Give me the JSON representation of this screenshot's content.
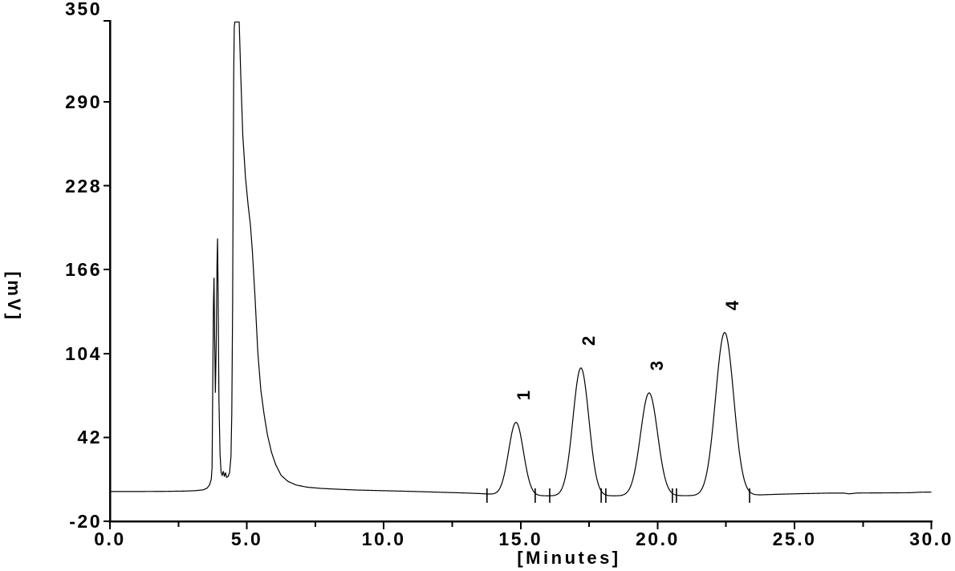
{
  "chart_data": {
    "type": "line",
    "title": "",
    "xlabel": "[Minutes]",
    "ylabel": "[mV]",
    "xlim": [
      0,
      30
    ],
    "ylim": [
      -20,
      350
    ],
    "grid": false,
    "legend": "none",
    "background_color": "#ffffff",
    "line_color": "#000000",
    "axis_color": "#000000",
    "x_major_ticks": [
      0,
      5,
      10,
      15,
      20,
      25,
      30
    ],
    "x_major_tick_labels": [
      "0.0",
      "5.0",
      "10.0",
      "15.0",
      "20.0",
      "25.0",
      "30.0"
    ],
    "x_minor_ticks": [
      2.5,
      7.5,
      12.5,
      17.5,
      22.5,
      27.5
    ],
    "y_ticks": [
      -20,
      42,
      104,
      166,
      228,
      290,
      350
    ],
    "y_tick_labels": [
      "-20",
      "42",
      "104",
      "166",
      "228",
      "290",
      "350"
    ],
    "baseline_mV": -1,
    "solvent_front": {
      "spike1": {
        "rt_min": 3.8,
        "apex_mV": 160
      },
      "spike2": {
        "rt_min": 3.93,
        "apex_mV": 189
      },
      "main_peak": {
        "rt_min": 4.6,
        "clipped_at_mV": 349,
        "flat_top_from_min": 4.56,
        "flat_top_to_min": 4.72
      }
    },
    "peaks": [
      {
        "label": "1",
        "rt_min": 14.83,
        "apex_mV": 53.0,
        "height_mV": 54.0,
        "sigma_min": 0.27
      },
      {
        "label": "2",
        "rt_min": 17.2,
        "apex_mV": 93.5,
        "height_mV": 94.5,
        "sigma_min": 0.29
      },
      {
        "label": "3",
        "rt_min": 19.69,
        "apex_mV": 75.0,
        "height_mV": 76.0,
        "sigma_min": 0.31
      },
      {
        "label": "4",
        "rt_min": 22.45,
        "apex_mV": 119.5,
        "height_mV": 120.5,
        "sigma_min": 0.33
      }
    ],
    "integration_marks_min": [
      13.77,
      15.53,
      16.06,
      17.94,
      18.11,
      20.54,
      20.69,
      23.36
    ],
    "trace_points": [
      [
        0,
        2
      ],
      [
        1,
        2
      ],
      [
        2,
        2.1
      ],
      [
        2.7,
        2.3
      ],
      [
        3.1,
        2.6
      ],
      [
        3.4,
        3.2
      ],
      [
        3.55,
        4.5
      ],
      [
        3.64,
        7
      ],
      [
        3.7,
        11
      ],
      [
        3.73,
        20
      ],
      [
        3.75,
        70
      ],
      [
        3.78,
        140
      ],
      [
        3.8,
        160
      ],
      [
        3.82,
        120
      ],
      [
        3.85,
        75
      ],
      [
        3.88,
        110
      ],
      [
        3.91,
        170
      ],
      [
        3.93,
        189
      ],
      [
        3.95,
        150
      ],
      [
        3.98,
        70
      ],
      [
        4.02,
        30
      ],
      [
        4.06,
        16
      ],
      [
        4.1,
        14
      ],
      [
        4.14,
        17
      ],
      [
        4.18,
        13
      ],
      [
        4.22,
        16
      ],
      [
        4.26,
        12.5
      ],
      [
        4.31,
        13
      ],
      [
        4.37,
        16
      ],
      [
        4.42,
        28
      ],
      [
        4.45,
        60
      ],
      [
        4.48,
        140
      ],
      [
        4.5,
        230
      ],
      [
        4.52,
        310
      ],
      [
        4.54,
        345
      ],
      [
        4.56,
        349
      ],
      [
        4.65,
        349
      ],
      [
        4.72,
        349
      ],
      [
        4.78,
        308
      ],
      [
        4.85,
        266
      ],
      [
        4.95,
        234
      ],
      [
        5.05,
        213
      ],
      [
        5.13,
        199
      ],
      [
        5.2,
        180
      ],
      [
        5.3,
        145
      ],
      [
        5.4,
        105
      ],
      [
        5.51,
        77
      ],
      [
        5.63,
        59
      ],
      [
        5.75,
        44
      ],
      [
        5.9,
        31
      ],
      [
        6.05,
        22
      ],
      [
        6.25,
        14
      ],
      [
        6.5,
        9.5
      ],
      [
        6.8,
        6.8
      ],
      [
        7.2,
        5.2
      ],
      [
        7.7,
        4.3
      ],
      [
        8.2,
        3.8
      ],
      [
        9,
        3.1
      ],
      [
        10,
        2.6
      ],
      [
        11,
        2.1
      ],
      [
        12,
        1.5
      ],
      [
        13,
        0.9
      ],
      [
        13.5,
        0.5
      ],
      [
        13.9,
        0
      ],
      [
        14.3,
        -0.6
      ],
      [
        15,
        -1
      ],
      [
        16,
        -1.2
      ],
      [
        17,
        -1.2
      ],
      [
        18,
        -1.2
      ],
      [
        19,
        -1.2
      ],
      [
        20,
        -1.1
      ],
      [
        21,
        -1.1
      ],
      [
        22,
        -1
      ],
      [
        23,
        -0.9
      ],
      [
        23.6,
        -0.6
      ],
      [
        24.3,
        -0.1
      ],
      [
        25.2,
        0.4
      ],
      [
        26.2,
        0.8
      ],
      [
        26.8,
        0.8
      ],
      [
        27,
        0.3
      ],
      [
        27.3,
        0.9
      ],
      [
        28.3,
        1
      ],
      [
        29.2,
        1.1
      ],
      [
        29.6,
        1.5
      ],
      [
        30,
        1.6
      ]
    ]
  }
}
